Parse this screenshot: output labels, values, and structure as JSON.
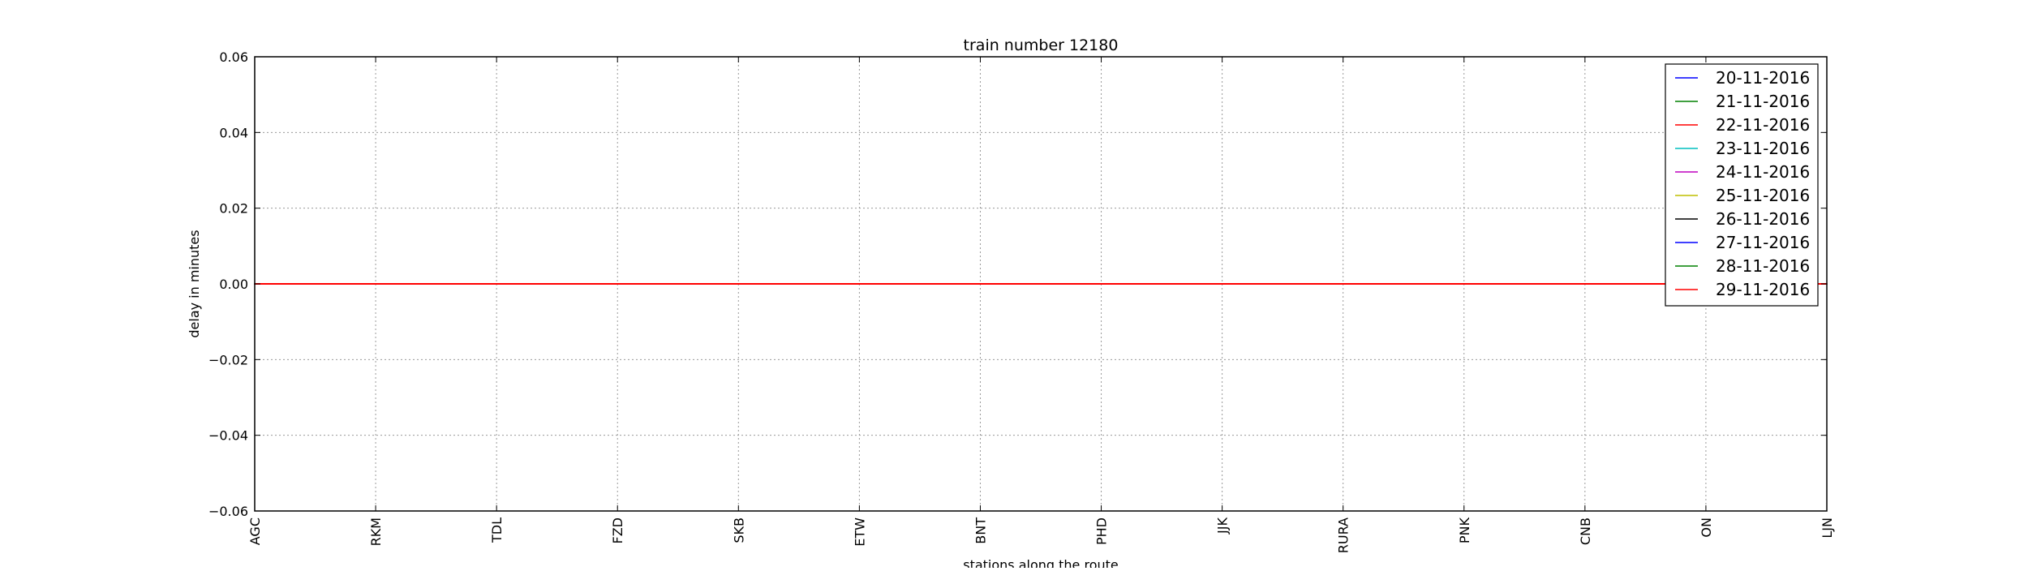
{
  "chart_data": {
    "type": "line",
    "title": "train number 12180",
    "xlabel": "stations along the route",
    "ylabel": "delay in minutes",
    "categories": [
      "AGC",
      "RKM",
      "TDL",
      "FZD",
      "SKB",
      "ETW",
      "BNT",
      "PHD",
      "JJK",
      "RURA",
      "PNK",
      "CNB",
      "ON",
      "LJN"
    ],
    "ylim": [
      -0.06,
      0.06
    ],
    "yticks": [
      -0.06,
      -0.04,
      -0.02,
      0.0,
      0.02,
      0.04,
      0.06
    ],
    "ytick_labels": [
      "−0.06",
      "−0.04",
      "−0.02",
      "0.00",
      "0.02",
      "0.04",
      "0.06"
    ],
    "grid": true,
    "legend_position": "top-right",
    "series": [
      {
        "name": "20-11-2016",
        "color": "#0000ff",
        "values": [
          0,
          0,
          0,
          0,
          0,
          0,
          0,
          0,
          0,
          0,
          0,
          0,
          0,
          0
        ]
      },
      {
        "name": "21-11-2016",
        "color": "#008000",
        "values": [
          0,
          0,
          0,
          0,
          0,
          0,
          0,
          0,
          0,
          0,
          0,
          0,
          0,
          0
        ]
      },
      {
        "name": "22-11-2016",
        "color": "#ff0000",
        "values": [
          0,
          0,
          0,
          0,
          0,
          0,
          0,
          0,
          0,
          0,
          0,
          0,
          0,
          0
        ]
      },
      {
        "name": "23-11-2016",
        "color": "#00bfbf",
        "values": [
          0,
          0,
          0,
          0,
          0,
          0,
          0,
          0,
          0,
          0,
          0,
          0,
          0,
          0
        ]
      },
      {
        "name": "24-11-2016",
        "color": "#bf00bf",
        "values": [
          0,
          0,
          0,
          0,
          0,
          0,
          0,
          0,
          0,
          0,
          0,
          0,
          0,
          0
        ]
      },
      {
        "name": "25-11-2016",
        "color": "#bfbf00",
        "values": [
          0,
          0,
          0,
          0,
          0,
          0,
          0,
          0,
          0,
          0,
          0,
          0,
          0,
          0
        ]
      },
      {
        "name": "26-11-2016",
        "color": "#000000",
        "values": [
          0,
          0,
          0,
          0,
          0,
          0,
          0,
          0,
          0,
          0,
          0,
          0,
          0,
          0
        ]
      },
      {
        "name": "27-11-2016",
        "color": "#0000ff",
        "values": [
          0,
          0,
          0,
          0,
          0,
          0,
          0,
          0,
          0,
          0,
          0,
          0,
          0,
          0
        ]
      },
      {
        "name": "28-11-2016",
        "color": "#008000",
        "values": [
          0,
          0,
          0,
          0,
          0,
          0,
          0,
          0,
          0,
          0,
          0,
          0,
          0,
          0
        ]
      },
      {
        "name": "29-11-2016",
        "color": "#ff0000",
        "values": [
          0,
          0,
          0,
          0,
          0,
          0,
          0,
          0,
          0,
          0,
          0,
          0,
          0,
          0
        ]
      }
    ]
  }
}
